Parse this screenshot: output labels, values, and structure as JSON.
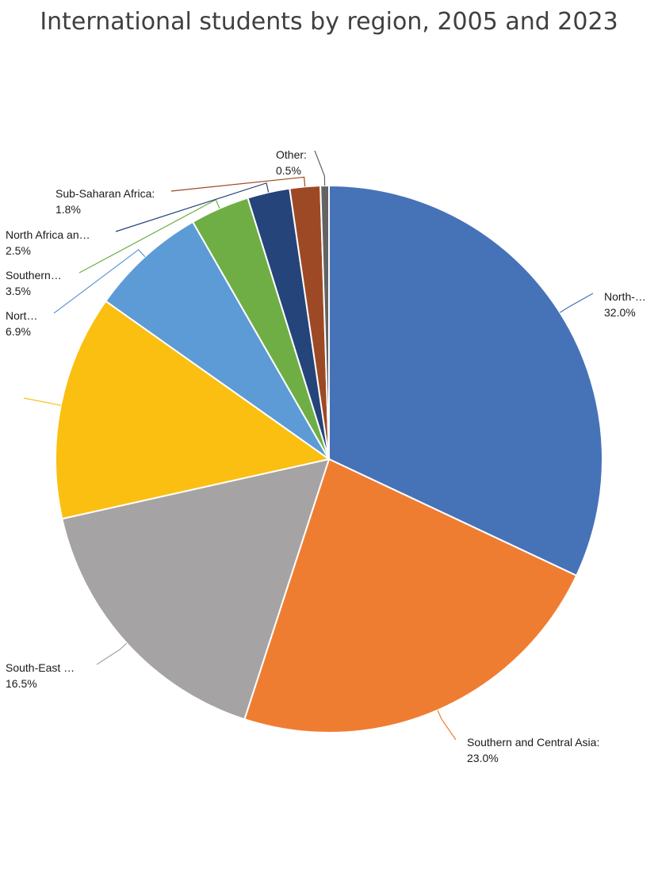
{
  "chart_data": {
    "type": "pie",
    "title": "International students by region, 2005 and 2023",
    "slices": [
      {
        "label": "North-…",
        "value": 32.0,
        "value_label": "32.0%",
        "color": "#4672B8"
      },
      {
        "label": "Southern and Central Asia:",
        "value": 23.0,
        "value_label": "23.0%",
        "color": "#EF7D31"
      },
      {
        "label": "South-East …",
        "value": 16.5,
        "value_label": "16.5%",
        "color": "#A5A3A4"
      },
      {
        "label": "",
        "value": 13.3,
        "value_label": "",
        "color": "#FBBF12"
      },
      {
        "label": "Nort…",
        "value": 6.9,
        "value_label": "6.9%",
        "color": "#5C9BD5"
      },
      {
        "label": "Southern…",
        "value": 3.5,
        "value_label": "3.5%",
        "color": "#6FAE45"
      },
      {
        "label": "North Africa an…",
        "value": 2.5,
        "value_label": "2.5%",
        "color": "#24447A"
      },
      {
        "label": "Sub-Saharan Africa:",
        "value": 1.8,
        "value_label": "1.8%",
        "color": "#9E4925"
      },
      {
        "label": "Other:",
        "value": 0.5,
        "value_label": "0.5%",
        "color": "#636363"
      }
    ]
  }
}
